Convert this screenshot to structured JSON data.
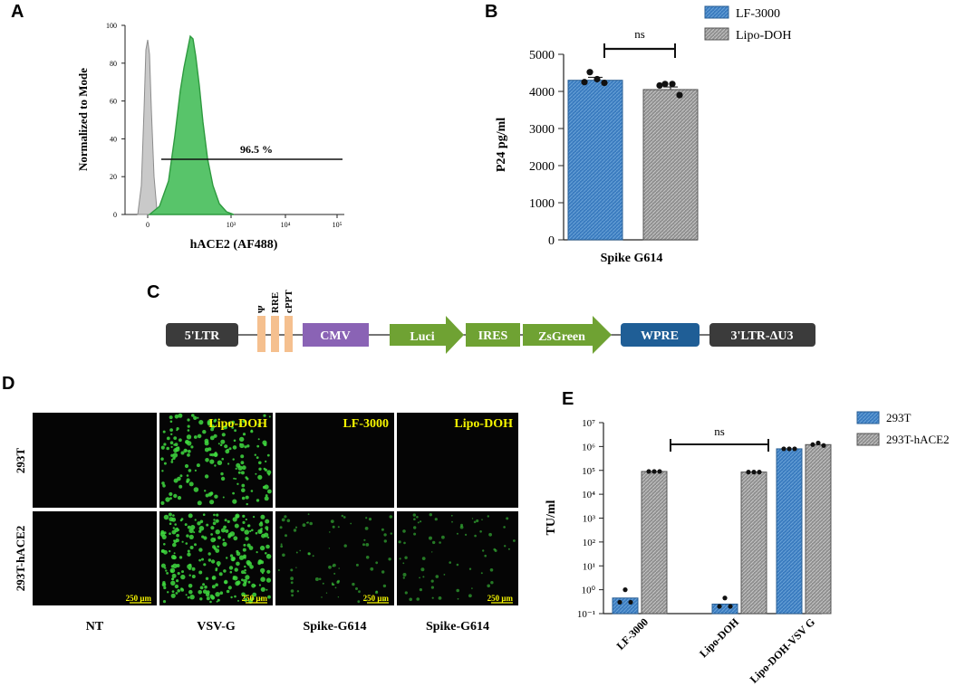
{
  "panels": {
    "A": {
      "letter": "A"
    },
    "B": {
      "letter": "B"
    },
    "C": {
      "letter": "C"
    },
    "D": {
      "letter": "D"
    },
    "E": {
      "letter": "E"
    }
  },
  "colors": {
    "blue": "#3a7bbf",
    "gray": "#9a9a9a",
    "green_fill": "#58c46a",
    "gray_hist": "#bdbdbd",
    "box_dark": "#3b3b3b",
    "box_purple": "#8a63b5",
    "arrow_green": "#6fa233",
    "box_blue": "#1f5e96",
    "box_orange": "#f5c08f",
    "micro_green": "#3fd93f",
    "micro_label_yellow": "#f5f500"
  },
  "chart_data": [
    {
      "panel": "A",
      "type": "area",
      "xlabel": "hACE2 (AF488)",
      "ylabel": "Normalized to Mode",
      "x_ticks": [
        "0",
        "10³",
        "10⁴",
        "10⁵"
      ],
      "x_log_values": [
        3,
        4,
        5
      ],
      "y_ticks": [
        0,
        20,
        40,
        60,
        80,
        100
      ],
      "ylim": [
        0,
        100
      ],
      "annotation": "96.5 %",
      "gate_y": 30,
      "series": [
        {
          "peak_position": "near 0",
          "peak_y": 93
        },
        {
          "peak_position": "~2.5 (log)",
          "peak_y": 94
        }
      ]
    },
    {
      "panel": "B",
      "type": "bar",
      "categories": [
        "Spike G614"
      ],
      "ylabel": "P24 pg/ml",
      "ylim": [
        0,
        5000
      ],
      "y_ticks": [
        0,
        1000,
        2000,
        3000,
        4000,
        5000
      ],
      "significance": "ns",
      "legend_position": "top-right",
      "series": [
        {
          "name": "LF-3000",
          "values": [
            4300
          ],
          "error": 80,
          "points": [
            4520,
            4330,
            4250,
            4230
          ]
        },
        {
          "name": "Lipo-DOH",
          "values": [
            4050
          ],
          "error": 70,
          "points": [
            4200,
            4200,
            4160,
            3900
          ]
        }
      ]
    },
    {
      "panel": "E",
      "type": "bar",
      "log_scale": true,
      "ylabel": "TU/ml",
      "ylim_exp": [
        -1,
        7
      ],
      "y_tick_labels": [
        "10⁻¹",
        "10⁰",
        "10¹",
        "10²",
        "10³",
        "10⁴",
        "10⁵",
        "10⁶",
        "10⁷"
      ],
      "categories": [
        "LF-3000",
        "Lipo-DOH",
        "Lipo-DOH-VSV G"
      ],
      "significance": "ns",
      "legend_position": "top-right",
      "series": [
        {
          "name": "293T",
          "values": [
            0.45,
            0.25,
            800000
          ],
          "points": [
            [
              0.3,
              1.0,
              0.3
            ],
            [
              0.2,
              0.45,
              0.2
            ],
            [
              800000,
              800000,
              800000
            ]
          ]
        },
        {
          "name": "293T-hACE2",
          "values": [
            90000,
            85000,
            1200000
          ],
          "points": [
            [
              90000,
              90000,
              90000
            ],
            [
              85000,
              85000,
              85000
            ],
            [
              1200000,
              1400000,
              1100000
            ]
          ]
        }
      ]
    }
  ],
  "construct": {
    "elements": [
      "5'LTR",
      "CMV",
      "Luci",
      "IRES",
      "ZsGreen",
      "WPRE",
      "3'LTR-ΔU3"
    ],
    "small_labels": [
      "Ψ",
      "RRE",
      "cPPT"
    ]
  },
  "micrographs": {
    "row_labels": [
      "293T",
      "293T-hACE2"
    ],
    "col_labels": [
      "NT",
      "VSV-G",
      "Spike-G614",
      "Spike-G614"
    ],
    "top_labels": [
      "",
      "Lipo-DOH",
      "LF-3000",
      "Lipo-DOH"
    ],
    "scale_bar": "250 μm"
  }
}
